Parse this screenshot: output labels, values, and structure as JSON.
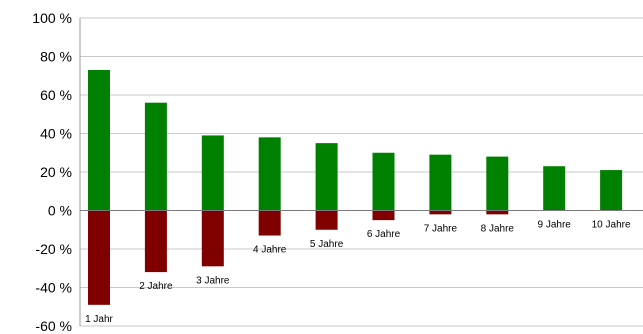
{
  "chart_data": {
    "type": "bar",
    "title": "",
    "xlabel": "",
    "ylabel": "",
    "ylim": [
      -60,
      100
    ],
    "y_ticks": [
      100,
      80,
      60,
      40,
      20,
      0,
      -20,
      -40,
      -60
    ],
    "y_tick_labels": [
      "100 %",
      "80 %",
      "60 %",
      "40 %",
      "20 %",
      "0 %",
      "-20 %",
      "-40 %",
      "-60 %"
    ],
    "grid": true,
    "legend": "none",
    "categories": [
      "1 Jahr",
      "2 Jahre",
      "3 Jahre",
      "4 Jahre",
      "5 Jahre",
      "6 Jahre",
      "7 Jahre",
      "8 Jahre",
      "9 Jahre",
      "10 Jahre"
    ],
    "series": [
      {
        "color": "#008000",
        "values": [
          73,
          56,
          39,
          38,
          35,
          30,
          29,
          28,
          23,
          21
        ]
      },
      {
        "color": "#800000",
        "values": [
          -49,
          -32,
          -29,
          -13,
          -10,
          -5,
          -2,
          -2,
          0,
          0
        ]
      }
    ]
  }
}
